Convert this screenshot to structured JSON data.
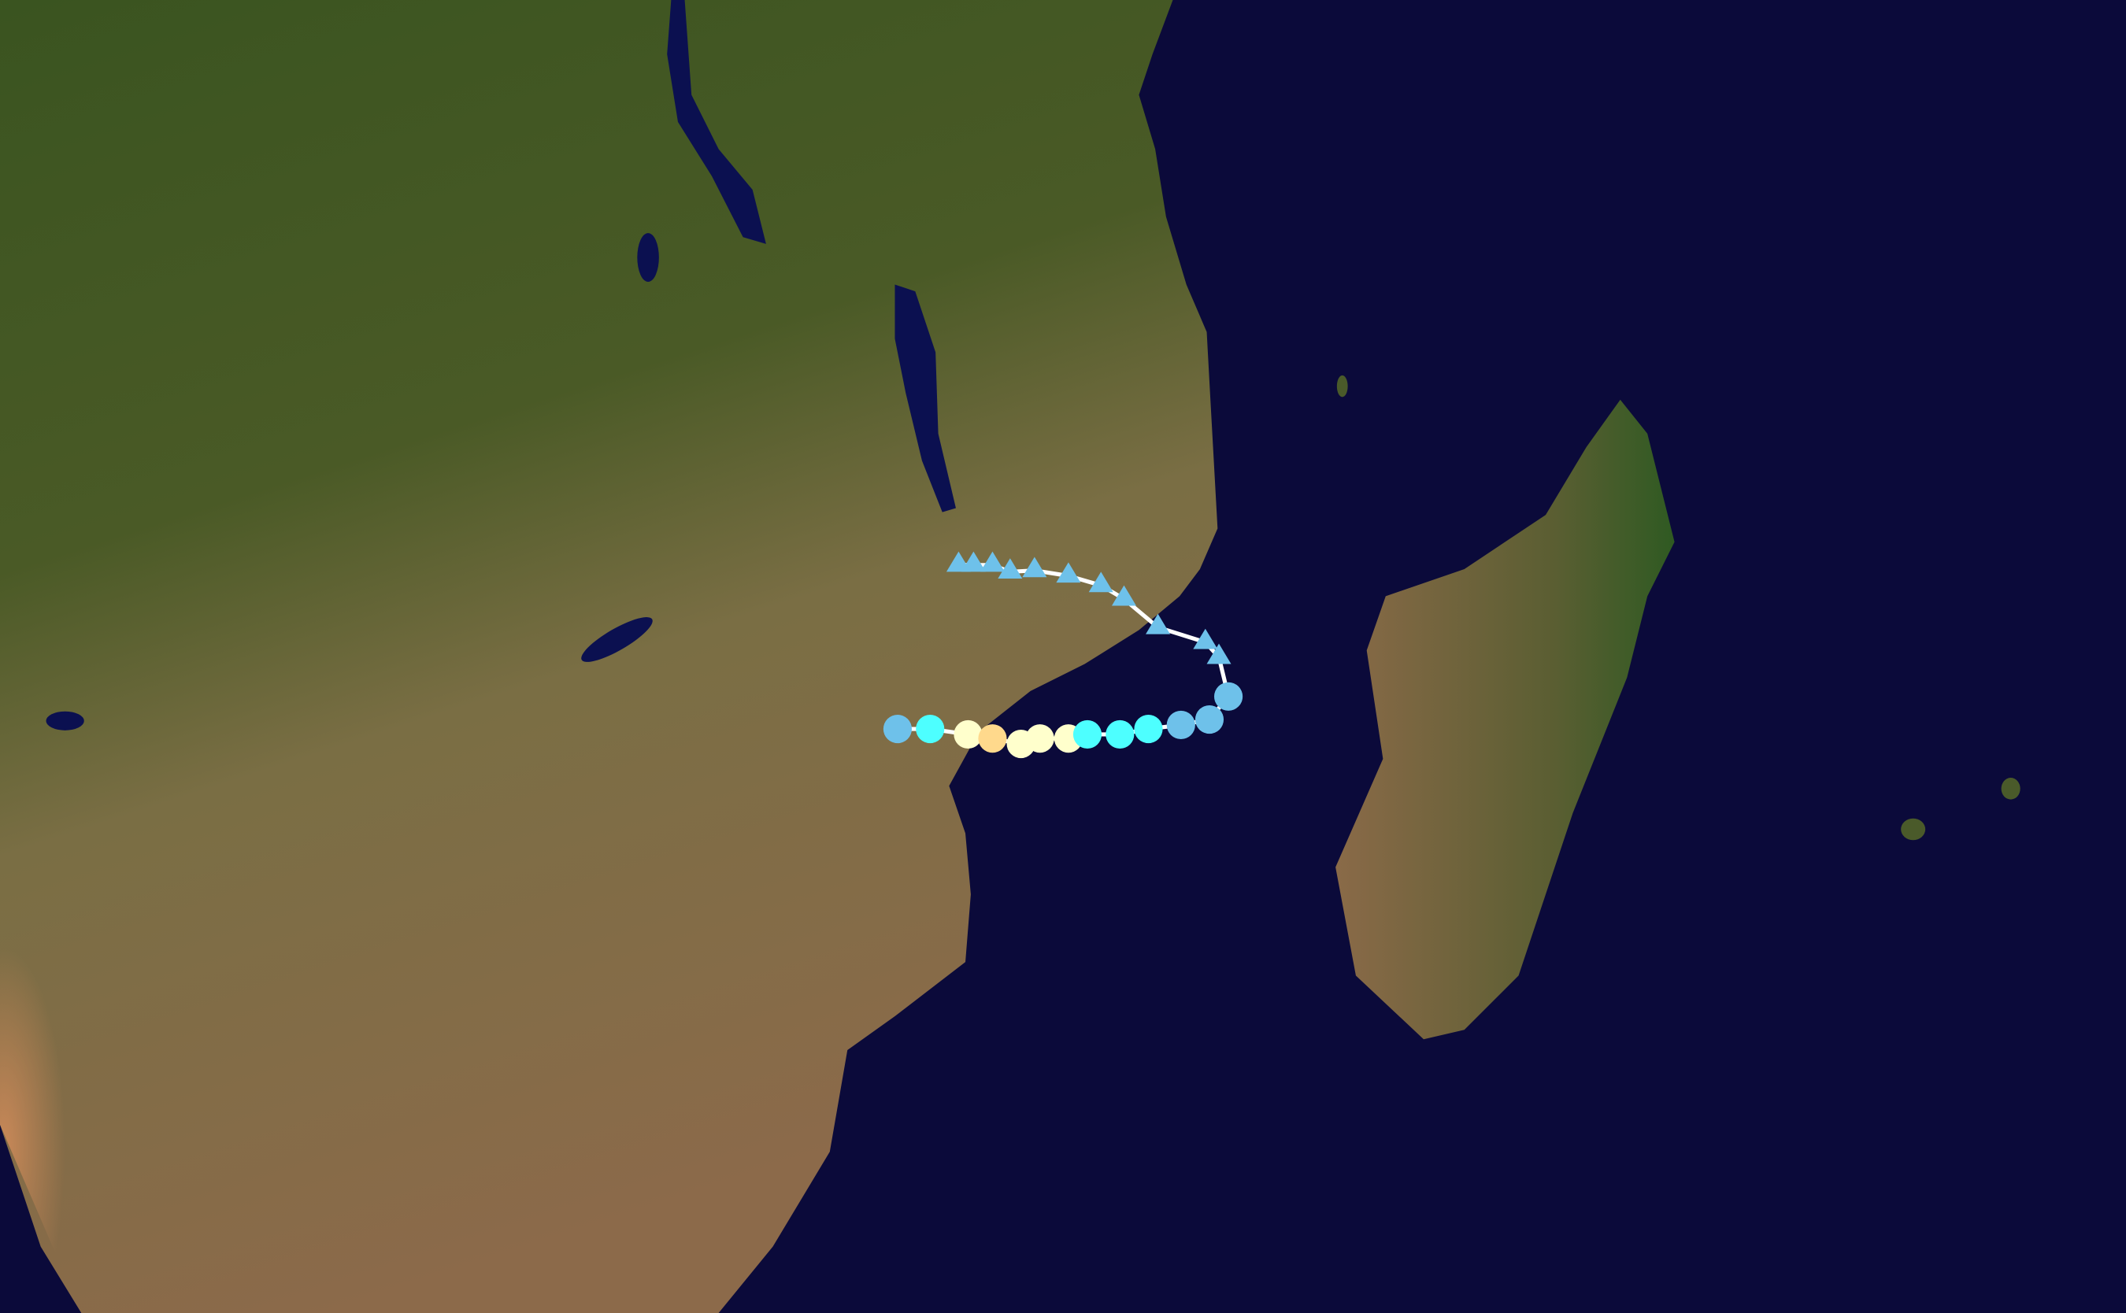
{
  "map": {
    "ocean_color": "#0b0a3a",
    "land_colors": {
      "green": "#3d5520",
      "savanna": "#6b6a3a",
      "tan": "#8c7352",
      "desert": "#c08456"
    },
    "track_line_color": "#ffffff",
    "legend_colors": {
      "tropical_depression": "#6ec1ea",
      "tropical_storm": "#4dffff",
      "category_1": "#ffffcc",
      "category_2": "#ffd98c"
    },
    "track_points": [
      {
        "type": "circle",
        "category": "tropical_depression"
      },
      {
        "type": "circle",
        "category": "tropical_storm"
      },
      {
        "type": "circle",
        "category": "category_1"
      },
      {
        "type": "circle",
        "category": "category_2"
      },
      {
        "type": "circle",
        "category": "category_1"
      },
      {
        "type": "circle",
        "category": "category_1"
      },
      {
        "type": "circle",
        "category": "category_1"
      },
      {
        "type": "circle",
        "category": "tropical_storm"
      },
      {
        "type": "circle",
        "category": "tropical_storm"
      },
      {
        "type": "circle",
        "category": "tropical_storm"
      },
      {
        "type": "circle",
        "category": "tropical_depression"
      },
      {
        "type": "circle",
        "category": "tropical_depression"
      },
      {
        "type": "circle",
        "category": "tropical_depression"
      },
      {
        "type": "triangle",
        "category": "tropical_depression"
      },
      {
        "type": "triangle",
        "category": "tropical_depression"
      },
      {
        "type": "triangle",
        "category": "tropical_depression"
      },
      {
        "type": "triangle",
        "category": "tropical_depression"
      },
      {
        "type": "triangle",
        "category": "tropical_depression"
      },
      {
        "type": "triangle",
        "category": "tropical_depression"
      },
      {
        "type": "triangle",
        "category": "tropical_depression"
      },
      {
        "type": "triangle",
        "category": "tropical_depression"
      },
      {
        "type": "triangle",
        "category": "tropical_depression"
      },
      {
        "type": "triangle",
        "category": "tropical_depression"
      },
      {
        "type": "triangle",
        "category": "tropical_depression"
      }
    ]
  }
}
